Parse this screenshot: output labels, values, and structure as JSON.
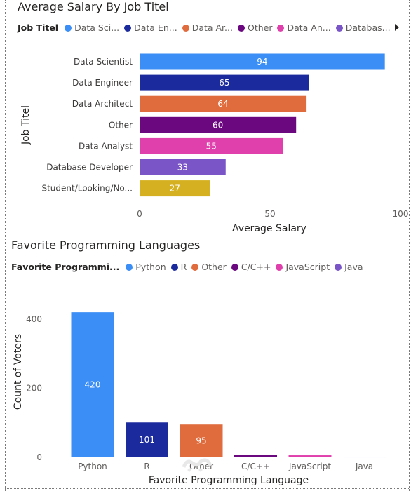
{
  "chart_data": [
    {
      "type": "bar",
      "orientation": "horizontal",
      "title": "Average Salary By Job Titel",
      "legend_title": "Job Titel",
      "legend": [
        {
          "label": "Data Sci...",
          "color": "#3a8ef6"
        },
        {
          "label": "Data En...",
          "color": "#1b2a9c"
        },
        {
          "label": "Data Ar...",
          "color": "#e06b3c"
        },
        {
          "label": "Other",
          "color": "#6b0880"
        },
        {
          "label": "Data An...",
          "color": "#e040ac"
        },
        {
          "label": "Databas...",
          "color": "#7a55c8"
        }
      ],
      "categories": [
        "Data Scientist",
        "Data Engineer",
        "Data Architect",
        "Other",
        "Data Analyst",
        "Database Developer",
        "Student/Looking/No..."
      ],
      "values": [
        94,
        65,
        64,
        60,
        55,
        33,
        27
      ],
      "colors": [
        "#3a8ef6",
        "#1b2a9c",
        "#e06b3c",
        "#6b0880",
        "#e040ac",
        "#7a55c8",
        "#d5b020"
      ],
      "data_labels": [
        "94",
        "65",
        "64",
        "60",
        "55",
        "33",
        "27"
      ],
      "xlabel": "Average Salary",
      "ylabel": "Job Titel",
      "xlim": [
        0,
        100
      ],
      "xticks": [
        "0",
        "50",
        "100"
      ],
      "grid": false,
      "legend_position": "top"
    },
    {
      "type": "bar",
      "orientation": "vertical",
      "title": "Favorite Programming Languages",
      "legend_title": "Favorite Programmi...",
      "legend": [
        {
          "label": "Python",
          "color": "#3a8ef6"
        },
        {
          "label": "R",
          "color": "#1b2a9c"
        },
        {
          "label": "Other",
          "color": "#e06b3c"
        },
        {
          "label": "C/C++",
          "color": "#6b0880"
        },
        {
          "label": "JavaScript",
          "color": "#e040ac"
        },
        {
          "label": "Java",
          "color": "#7a55c8"
        }
      ],
      "categories": [
        "Python",
        "R",
        "Other",
        "C/C++",
        "JavaScript",
        "Java"
      ],
      "values": [
        420,
        101,
        95,
        8,
        6,
        2
      ],
      "colors": [
        "#3a8ef6",
        "#1b2a9c",
        "#e06b3c",
        "#6b0880",
        "#e040ac",
        "#7a55c8"
      ],
      "data_labels": [
        "420",
        "101",
        "95",
        "",
        "",
        ""
      ],
      "xlabel": "Favorite Programming Language",
      "ylabel": "Count of Voters",
      "ylim": [
        0,
        440
      ],
      "yticks": [
        "0",
        "200",
        "400"
      ],
      "grid": false,
      "legend_position": "top"
    }
  ]
}
